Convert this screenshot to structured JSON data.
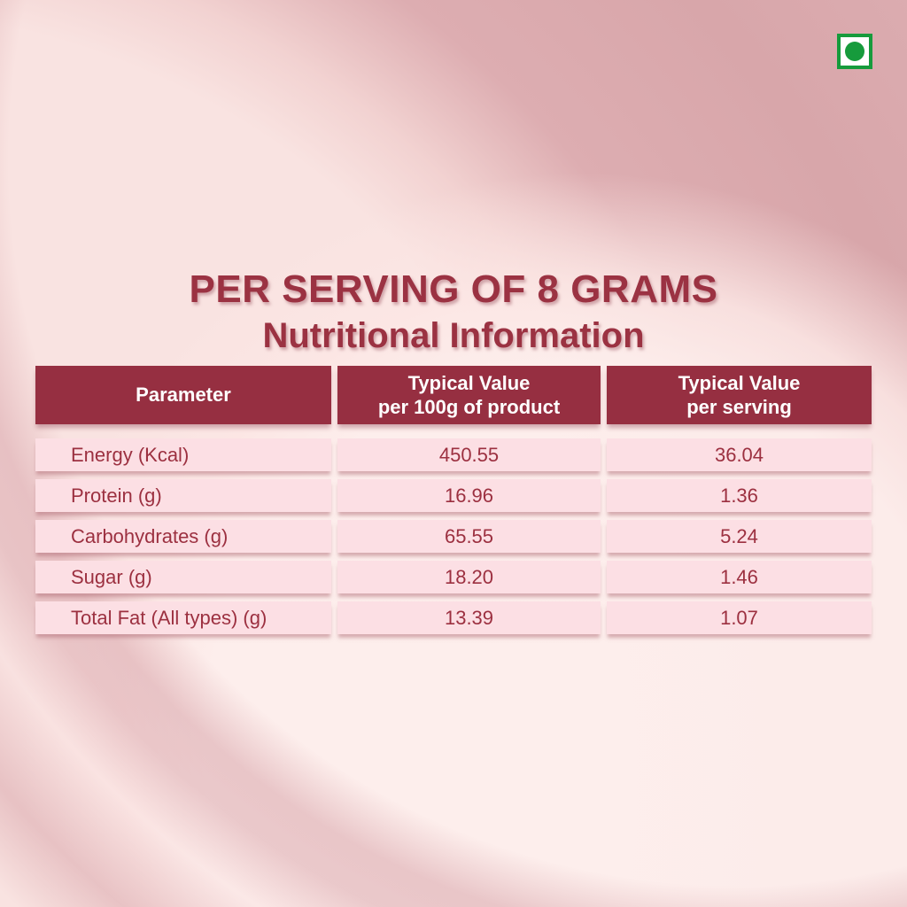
{
  "page": {
    "title": "PER SERVING OF 8 GRAMS",
    "subtitle": "Nutritional Information"
  },
  "veg_mark": {
    "type": "vegetarian-symbol"
  },
  "table": {
    "headers": {
      "parameter": "Parameter",
      "per_100g_line1": "Typical Value",
      "per_100g_line2": "per 100g of product",
      "per_serving_line1": "Typical Value",
      "per_serving_line2": "per serving"
    },
    "rows": [
      {
        "parameter": "Energy (Kcal)",
        "per_100g": "450.55",
        "per_serving": "36.04"
      },
      {
        "parameter": "Protein (g)",
        "per_100g": "16.96",
        "per_serving": "1.36"
      },
      {
        "parameter": "Carbohydrates (g)",
        "per_100g": "65.55",
        "per_serving": "5.24"
      },
      {
        "parameter": "Sugar (g)",
        "per_100g": "18.20",
        "per_serving": "1.46"
      },
      {
        "parameter": "Total Fat (All types) (g)",
        "per_100g": "13.39",
        "per_serving": "1.07"
      }
    ]
  },
  "colors": {
    "maroon_header": "#962f41",
    "title_text": "#9b3242",
    "cell_background": "#fcdfe4",
    "cell_text": "#9c3040",
    "background_light": "#f9e3e1",
    "background_rose": "#d8a6aa",
    "veg_green": "#169b3c"
  }
}
